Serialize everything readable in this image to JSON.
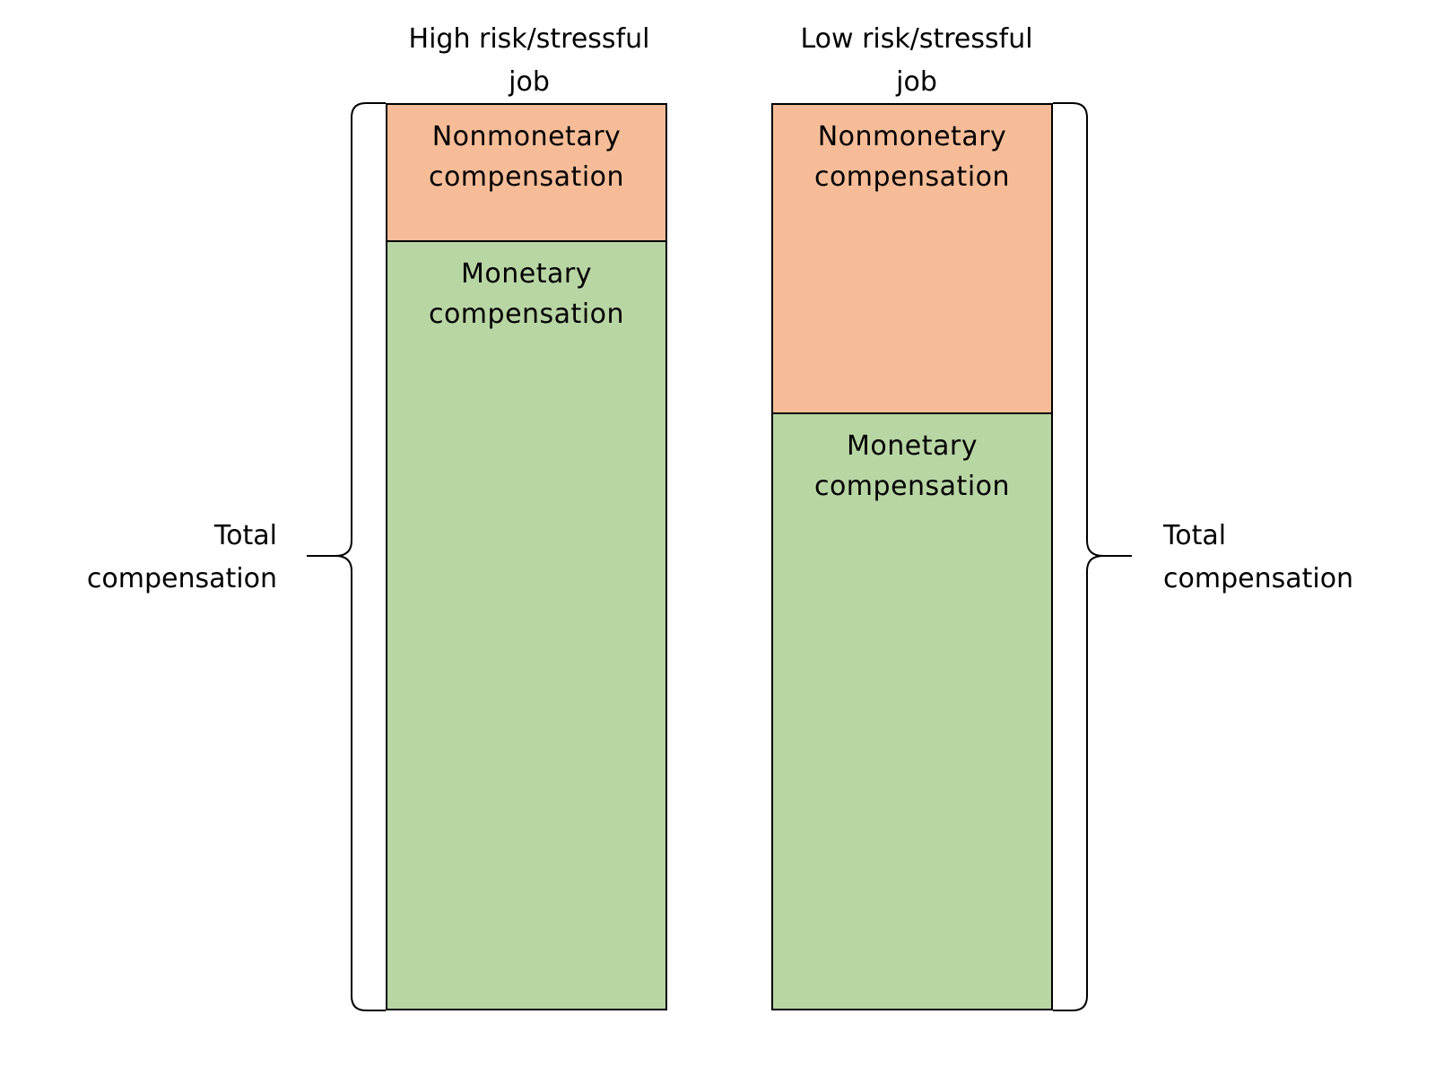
{
  "diagram": {
    "columns": [
      {
        "title": "High risk/stressful\njob",
        "nonmonetary_label": "Nonmonetary\ncompensation",
        "monetary_label": "Monetary\ncompensation",
        "nonmonetary_share": 0.15,
        "nonmonetary_color": "#f6bc98",
        "monetary_color": "#b8d5a4"
      },
      {
        "title": "Low risk/stressful\njob",
        "nonmonetary_label": "Nonmonetary\ncompensation",
        "monetary_label": "Monetary\ncompensation",
        "nonmonetary_share": 0.34,
        "nonmonetary_color": "#f6bc98",
        "monetary_color": "#b8d5a4"
      }
    ],
    "total_labels": {
      "left": "Total\ncompensation",
      "right": "Total\ncompensation"
    }
  }
}
